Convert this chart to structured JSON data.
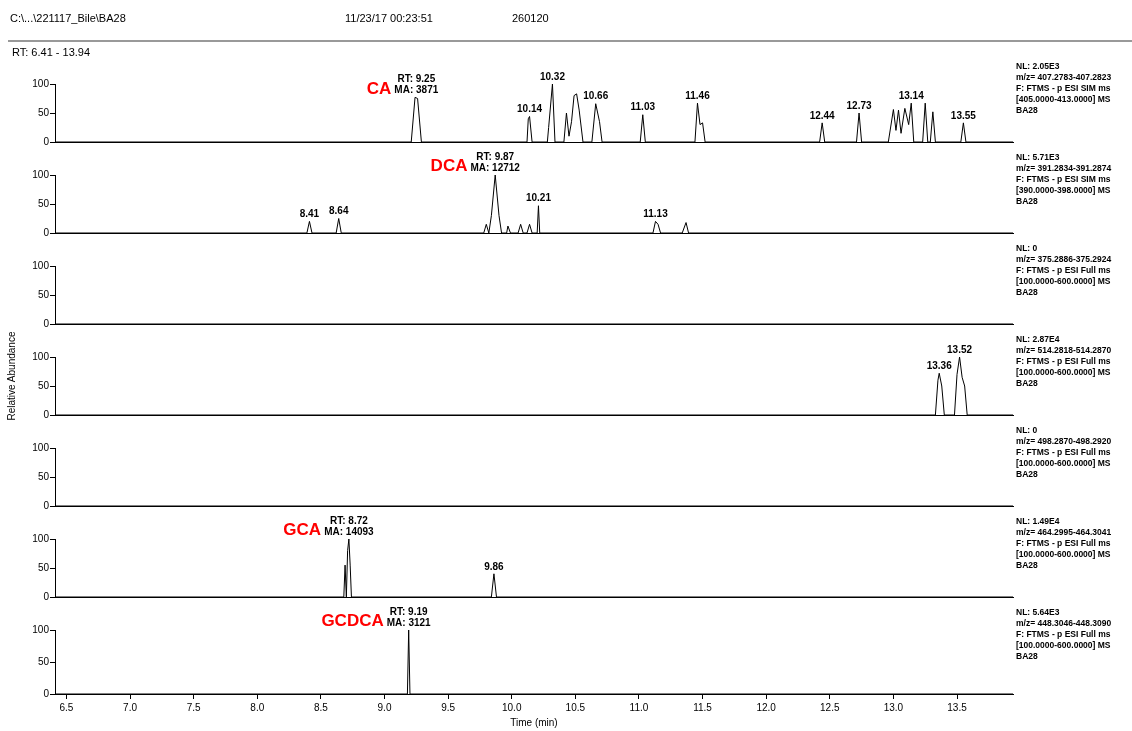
{
  "chart_data": [
    {
      "type": "other",
      "annotations": [
        "C:\\...\\221117_Bile\\BA28",
        "11/23/17 00:23:51",
        "260120",
        "RT: 6.41 - 13.94"
      ]
    },
    {
      "type": "line",
      "title": "CA",
      "xlim": [
        6.41,
        13.94
      ],
      "ylim": [
        0,
        100
      ],
      "yticks": [
        0,
        50,
        100
      ],
      "tick_labels": "y",
      "grid": false,
      "legend": false,
      "marker": "none",
      "line_style": "solid",
      "series": [
        {
          "color": "#000000",
          "x": [
            6.41,
            9.21,
            9.24,
            9.26,
            9.29,
            10.12,
            10.13,
            10.14,
            10.16,
            10.28,
            10.29,
            10.32,
            10.34,
            10.41,
            10.43,
            10.45,
            10.47,
            10.49,
            10.51,
            10.53,
            10.56,
            10.63,
            10.66,
            10.69,
            10.71,
            11.01,
            11.03,
            11.05,
            11.44,
            11.46,
            11.48,
            11.5,
            11.52,
            12.42,
            12.44,
            12.46,
            12.71,
            12.73,
            12.75,
            12.96,
            13.0,
            13.02,
            13.04,
            13.06,
            13.09,
            13.12,
            13.14,
            13.16,
            13.23,
            13.25,
            13.27,
            13.29,
            13.31,
            13.33,
            13.53,
            13.55,
            13.57,
            13.94
          ],
          "values": [
            0,
            0,
            77,
            75,
            0,
            0,
            40,
            44,
            0,
            0,
            25,
            100,
            0,
            0,
            50,
            10,
            35,
            80,
            83,
            55,
            0,
            0,
            66,
            35,
            0,
            0,
            47,
            0,
            0,
            67,
            30,
            33,
            0,
            0,
            33,
            0,
            0,
            50,
            0,
            0,
            56,
            20,
            55,
            15,
            58,
            30,
            67,
            0,
            0,
            67,
            0,
            0,
            52,
            0,
            0,
            33,
            0,
            0
          ]
        }
      ],
      "annotations": [
        {
          "text": "RT: 9.25\nMA: 3871",
          "x": 9.25,
          "y": 77
        },
        {
          "text": "10.14",
          "x": 10.14,
          "y": 44
        },
        {
          "text": "10.32",
          "x": 10.32,
          "y": 100
        },
        {
          "text": "10.66",
          "x": 10.66,
          "y": 66
        },
        {
          "text": "11.03",
          "x": 11.03,
          "y": 47
        },
        {
          "text": "11.46",
          "x": 11.46,
          "y": 67
        },
        {
          "text": "12.44",
          "x": 12.44,
          "y": 33
        },
        {
          "text": "12.73",
          "x": 12.73,
          "y": 50
        },
        {
          "text": "13.14",
          "x": 13.14,
          "y": 67
        },
        {
          "text": "13.55",
          "x": 13.55,
          "y": 33
        },
        "NL: 2.05E3",
        "m/z= 407.2783-407.2823",
        "F: FTMS - p ESI SIM ms",
        "[405.0000-413.0000] MS",
        "BA28"
      ]
    },
    {
      "type": "line",
      "title": "DCA",
      "xlim": [
        6.41,
        13.94
      ],
      "ylim": [
        0,
        100
      ],
      "yticks": [
        0,
        50,
        100
      ],
      "tick_labels": "y",
      "grid": false,
      "legend": false,
      "marker": "none",
      "line_style": "solid",
      "series": [
        {
          "color": "#000000",
          "x": [
            6.41,
            8.39,
            8.41,
            8.43,
            8.62,
            8.64,
            8.66,
            9.78,
            9.8,
            9.82,
            9.84,
            9.87,
            9.9,
            9.92,
            9.96,
            9.97,
            9.99,
            10.05,
            10.07,
            10.09,
            10.12,
            10.14,
            10.16,
            10.2,
            10.21,
            10.22,
            11.11,
            11.13,
            11.15,
            11.17,
            11.34,
            11.37,
            11.39,
            13.94
          ],
          "values": [
            0,
            0,
            20,
            0,
            0,
            25,
            0,
            0,
            15,
            0,
            30,
            100,
            30,
            0,
            0,
            12,
            0,
            0,
            15,
            0,
            0,
            15,
            0,
            0,
            47,
            0,
            0,
            20,
            15,
            0,
            0,
            18,
            0,
            0
          ]
        }
      ],
      "annotations": [
        {
          "text": "RT: 9.87\nMA: 12712",
          "x": 9.87,
          "y": 100
        },
        {
          "text": "8.41",
          "x": 8.41,
          "y": 20
        },
        {
          "text": "8.64",
          "x": 8.64,
          "y": 25
        },
        {
          "text": "10.21",
          "x": 10.21,
          "y": 47
        },
        {
          "text": "11.13",
          "x": 11.13,
          "y": 20
        },
        "NL: 5.71E3",
        "m/z= 391.2834-391.2874",
        "F: FTMS - p ESI SIM ms",
        "[390.0000-398.0000] MS",
        "BA28"
      ]
    },
    {
      "type": "line",
      "xlim": [
        6.41,
        13.94
      ],
      "ylim": [
        0,
        100
      ],
      "yticks": [
        0,
        50,
        100
      ],
      "tick_labels": "y",
      "grid": false,
      "legend": false,
      "marker": "none",
      "line_style": "solid",
      "series": [
        {
          "color": "#000000",
          "x": [
            6.41,
            13.94
          ],
          "values": [
            0,
            0
          ]
        }
      ],
      "annotations": [
        "NL: 0",
        "m/z= 375.2886-375.2924",
        "F: FTMS - p ESI Full ms",
        "[100.0000-600.0000] MS",
        "BA28"
      ]
    },
    {
      "type": "line",
      "ylabel": "Relative Abundance",
      "xlim": [
        6.41,
        13.94
      ],
      "ylim": [
        0,
        100
      ],
      "yticks": [
        0,
        50,
        100
      ],
      "tick_labels": "y",
      "grid": false,
      "legend": false,
      "marker": "none",
      "line_style": "solid",
      "series": [
        {
          "color": "#000000",
          "x": [
            6.41,
            13.33,
            13.35,
            13.36,
            13.38,
            13.4,
            13.48,
            13.5,
            13.52,
            13.54,
            13.56,
            13.58,
            13.94
          ],
          "values": [
            0,
            0,
            60,
            72,
            50,
            0,
            0,
            70,
            100,
            65,
            50,
            0,
            0
          ]
        }
      ],
      "annotations": [
        {
          "text": "13.36",
          "x": 13.36,
          "y": 72
        },
        {
          "text": "13.52",
          "x": 13.52,
          "y": 100
        },
        "NL: 2.87E4",
        "m/z= 514.2818-514.2870",
        "F: FTMS - p ESI Full ms",
        "[100.0000-600.0000] MS",
        "BA28"
      ]
    },
    {
      "type": "line",
      "xlim": [
        6.41,
        13.94
      ],
      "ylim": [
        0,
        100
      ],
      "yticks": [
        0,
        50,
        100
      ],
      "tick_labels": "y",
      "grid": false,
      "legend": false,
      "marker": "none",
      "line_style": "solid",
      "series": [
        {
          "color": "#000000",
          "x": [
            6.41,
            13.94
          ],
          "values": [
            0,
            0
          ]
        }
      ],
      "annotations": [
        "NL: 0",
        "m/z= 498.2870-498.2920",
        "F: FTMS - p ESI Full ms",
        "[100.0000-600.0000] MS",
        "BA28"
      ]
    },
    {
      "type": "line",
      "title": "GCA",
      "xlim": [
        6.41,
        13.94
      ],
      "ylim": [
        0,
        100
      ],
      "yticks": [
        0,
        50,
        100
      ],
      "tick_labels": "y",
      "grid": false,
      "legend": false,
      "marker": "none",
      "line_style": "solid",
      "series": [
        {
          "color": "#000000",
          "x": [
            6.41,
            8.68,
            8.69,
            8.7,
            8.71,
            8.72,
            8.73,
            8.74,
            9.84,
            9.86,
            9.88,
            13.94
          ],
          "values": [
            0,
            0,
            55,
            0,
            80,
            100,
            55,
            0,
            0,
            40,
            0,
            0
          ]
        }
      ],
      "annotations": [
        {
          "text": "RT: 8.72\nMA: 14093",
          "x": 8.72,
          "y": 100
        },
        {
          "text": "9.86",
          "x": 9.86,
          "y": 40
        },
        "NL: 1.49E4",
        "m/z= 464.2995-464.3041",
        "F: FTMS - p ESI Full ms",
        "[100.0000-600.0000] MS",
        "BA28"
      ]
    },
    {
      "type": "line",
      "title": "GCDCA",
      "xlabel": "Time (min)",
      "xlim": [
        6.41,
        13.94
      ],
      "ylim": [
        0,
        100
      ],
      "yticks": [
        0,
        50,
        100
      ],
      "xticks": [
        6.5,
        {
          "value": 7,
          "label": "7.0"
        },
        7.5,
        {
          "value": 8,
          "label": "8.0"
        },
        8.5,
        {
          "value": 9,
          "label": "9.0"
        },
        9.5,
        {
          "value": 10,
          "label": "10.0"
        },
        10.5,
        {
          "value": 11,
          "label": "11.0"
        },
        11.5,
        {
          "value": 12,
          "label": "12.0"
        },
        12.5,
        {
          "value": 13,
          "label": "13.0"
        },
        13.5
      ],
      "grid": false,
      "legend": false,
      "marker": "none",
      "line_style": "solid",
      "series": [
        {
          "color": "#000000",
          "x": [
            6.41,
            9.18,
            9.19,
            9.2,
            13.94
          ],
          "values": [
            0,
            0,
            100,
            0,
            0
          ]
        }
      ],
      "annotations": [
        {
          "text": "RT: 9.19\nMA: 3121",
          "x": 9.19,
          "y": 100
        },
        "NL: 5.64E3",
        "m/z= 448.3046-448.3090",
        "F: FTMS - p ESI Full ms",
        "[100.0000-600.0000] MS",
        "BA28"
      ]
    }
  ]
}
